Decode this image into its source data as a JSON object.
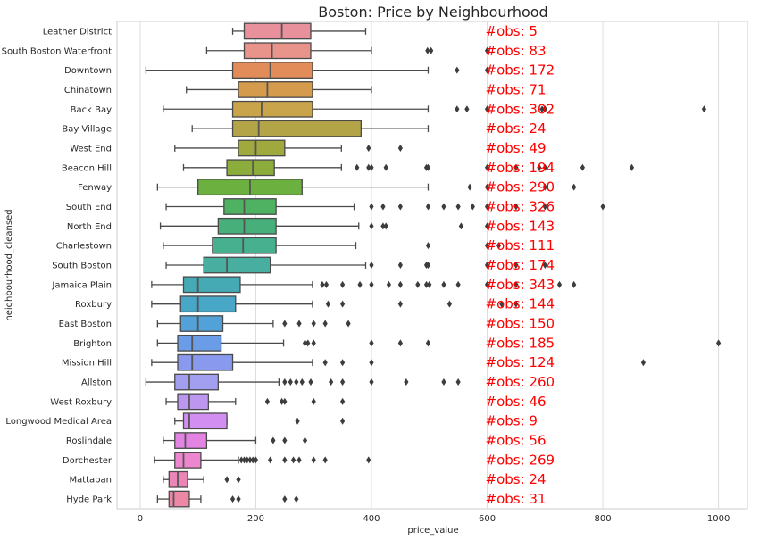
{
  "chart_data": {
    "type": "box",
    "title": "Boston: Price by Neighbourhood",
    "xlabel": "price_value",
    "ylabel": "neighbourhood_cleansed",
    "xlim": [
      -40,
      1050
    ],
    "xticks": [
      0,
      200,
      400,
      600,
      800,
      1000
    ],
    "grid": "vertical",
    "annotation_x": 600,
    "annotation_color": "#ff0000",
    "median_color": "#555555",
    "categories": [
      {
        "name": "Leather District",
        "obs": "#obs: 5",
        "color": "#e8909c",
        "wl": 160,
        "q1": 180,
        "med": 245,
        "q3": 295,
        "wh": 390,
        "outliers": []
      },
      {
        "name": "South Boston Waterfront",
        "obs": "#obs: 83",
        "color": "#e8948a",
        "wl": 115,
        "q1": 180,
        "med": 228,
        "q3": 295,
        "wh": 400,
        "outliers": [
          497,
          503,
          600
        ]
      },
      {
        "name": "Downtown",
        "obs": "#obs: 172",
        "color": "#e28c5a",
        "wl": 10,
        "q1": 160,
        "med": 225,
        "q3": 298,
        "wh": 498,
        "outliers": [
          548,
          600
        ]
      },
      {
        "name": "Chinatown",
        "obs": "#obs: 71",
        "color": "#d49b4c",
        "wl": 80,
        "q1": 170,
        "med": 220,
        "q3": 298,
        "wh": 400,
        "outliers": []
      },
      {
        "name": "Back Bay",
        "obs": "#obs: 302",
        "color": "#c9a44a",
        "wl": 40,
        "q1": 160,
        "med": 210,
        "q3": 298,
        "wh": 498,
        "outliers": [
          548,
          565,
          600,
          695,
          700,
          975
        ]
      },
      {
        "name": "Bay Village",
        "obs": "#obs: 24",
        "color": "#b3a448",
        "wl": 90,
        "q1": 160,
        "med": 205,
        "q3": 382,
        "wh": 498,
        "outliers": []
      },
      {
        "name": "West End",
        "obs": "#obs: 49",
        "color": "#a0a93d",
        "wl": 60,
        "q1": 170,
        "med": 200,
        "q3": 250,
        "wh": 348,
        "outliers": [
          395,
          450
        ]
      },
      {
        "name": "Beacon Hill",
        "obs": "#obs: 194",
        "color": "#8cac3c",
        "wl": 75,
        "q1": 150,
        "med": 195,
        "q3": 232,
        "wh": 348,
        "outliers": [
          375,
          395,
          400,
          425,
          495,
          498,
          600,
          650,
          690,
          700,
          765,
          850
        ]
      },
      {
        "name": "Fenway",
        "obs": "#obs: 290",
        "color": "#6cb13f",
        "wl": 30,
        "q1": 100,
        "med": 190,
        "q3": 280,
        "wh": 498,
        "outliers": [
          570,
          600,
          700,
          750
        ]
      },
      {
        "name": "South End",
        "obs": "#obs: 326",
        "color": "#4fb263",
        "wl": 45,
        "q1": 145,
        "med": 180,
        "q3": 235,
        "wh": 370,
        "outliers": [
          400,
          420,
          450,
          498,
          525,
          550,
          575,
          600,
          650,
          700,
          800
        ]
      },
      {
        "name": "North End",
        "obs": "#obs: 143",
        "color": "#47b07a",
        "wl": 35,
        "q1": 135,
        "med": 180,
        "q3": 235,
        "wh": 378,
        "outliers": [
          400,
          420,
          425,
          555,
          600
        ]
      },
      {
        "name": "Charlestown",
        "obs": "#obs: 111",
        "color": "#47b08f",
        "wl": 40,
        "q1": 125,
        "med": 178,
        "q3": 235,
        "wh": 373,
        "outliers": [
          498,
          600,
          620
        ]
      },
      {
        "name": "South Boston",
        "obs": "#obs: 174",
        "color": "#47aea0",
        "wl": 45,
        "q1": 110,
        "med": 150,
        "q3": 225,
        "wh": 390,
        "outliers": [
          400,
          450,
          495,
          498,
          600,
          650,
          700
        ]
      },
      {
        "name": "Jamaica Plain",
        "obs": "#obs: 343",
        "color": "#45aab4",
        "wl": 20,
        "q1": 75,
        "med": 100,
        "q3": 173,
        "wh": 298,
        "outliers": [
          315,
          322,
          350,
          380,
          400,
          430,
          450,
          480,
          495,
          500,
          525,
          550,
          600,
          650,
          725,
          750
        ]
      },
      {
        "name": "Roxbury",
        "obs": "#obs: 144",
        "color": "#48a6c7",
        "wl": 20,
        "q1": 70,
        "med": 100,
        "q3": 165,
        "wh": 298,
        "outliers": [
          325,
          350,
          450,
          535,
          625,
          650
        ]
      },
      {
        "name": "East Boston",
        "obs": "#obs: 150",
        "color": "#52a1d8",
        "wl": 30,
        "q1": 70,
        "med": 100,
        "q3": 143,
        "wh": 230,
        "outliers": [
          250,
          275,
          300,
          320,
          360
        ]
      },
      {
        "name": "Brighton",
        "obs": "#obs: 185",
        "color": "#6a9ce8",
        "wl": 30,
        "q1": 65,
        "med": 90,
        "q3": 140,
        "wh": 248,
        "outliers": [
          285,
          290,
          300,
          400,
          450,
          498,
          1000
        ]
      },
      {
        "name": "Mission Hill",
        "obs": "#obs: 124",
        "color": "#8999ee",
        "wl": 20,
        "q1": 65,
        "med": 90,
        "q3": 160,
        "wh": 298,
        "outliers": [
          320,
          350,
          400,
          870
        ]
      },
      {
        "name": "Allston",
        "obs": "#obs: 260",
        "color": "#a29ff0",
        "wl": 10,
        "q1": 60,
        "med": 85,
        "q3": 135,
        "wh": 240,
        "outliers": [
          250,
          260,
          270,
          280,
          295,
          330,
          350,
          400,
          460,
          525,
          550
        ]
      },
      {
        "name": "West Roxbury",
        "obs": "#obs: 46",
        "color": "#bd97ef",
        "wl": 45,
        "q1": 65,
        "med": 85,
        "q3": 118,
        "wh": 165,
        "outliers": [
          220,
          245,
          250,
          300,
          350
        ]
      },
      {
        "name": "Longwood Medical Area",
        "obs": "#obs: 9",
        "color": "#d28ef0",
        "wl": 60,
        "q1": 75,
        "med": 85,
        "q3": 150,
        "wh": 150,
        "outliers": [
          272,
          350
        ]
      },
      {
        "name": "Roslindale",
        "obs": "#obs: 56",
        "color": "#e384e3",
        "wl": 40,
        "q1": 60,
        "med": 78,
        "q3": 115,
        "wh": 200,
        "outliers": [
          230,
          250,
          285
        ]
      },
      {
        "name": "Dorchester",
        "obs": "#obs: 269",
        "color": "#ec86cf",
        "wl": 25,
        "q1": 60,
        "med": 75,
        "q3": 105,
        "wh": 170,
        "outliers": [
          175,
          180,
          185,
          190,
          195,
          200,
          225,
          250,
          265,
          275,
          300,
          320,
          395
        ]
      },
      {
        "name": "Mattapan",
        "obs": "#obs: 24",
        "color": "#ec86b7",
        "wl": 40,
        "q1": 50,
        "med": 65,
        "q3": 82,
        "wh": 110,
        "outliers": [
          150,
          170
        ]
      },
      {
        "name": "Hyde Park",
        "obs": "#obs: 31",
        "color": "#ec88a6",
        "wl": 30,
        "q1": 50,
        "med": 58,
        "q3": 85,
        "wh": 105,
        "outliers": [
          160,
          170,
          250,
          270
        ]
      }
    ]
  }
}
